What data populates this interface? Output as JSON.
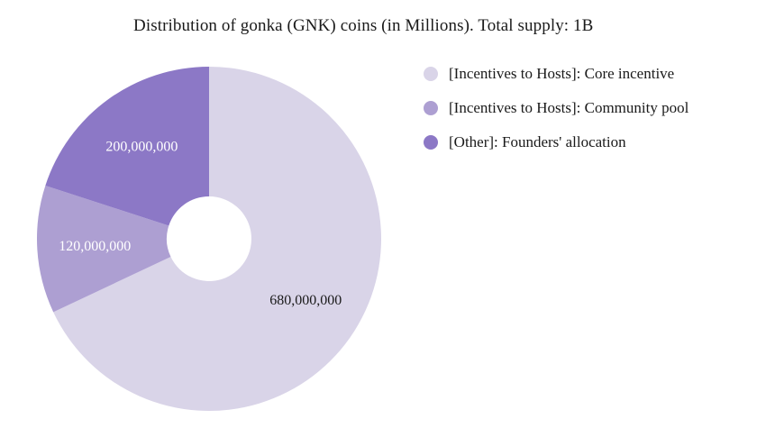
{
  "chart_data": {
    "type": "pie",
    "title": "Distribution of gonka (GNK) coins (in Millions). Total supply: 1B",
    "donut": true,
    "legend_position": "right",
    "slices": [
      {
        "name": "[Incentives to Hosts]: Core incentive",
        "value": 680000000,
        "label": "680,000,000",
        "color": "#d9d4e8",
        "label_color": "#1a1a1a"
      },
      {
        "name": "[Incentives to Hosts]: Community pool",
        "value": 120000000,
        "label": "120,000,000",
        "color": "#ad9fd2",
        "label_color": "#ffffff"
      },
      {
        "name": "[Other]: Founders' allocation",
        "value": 200000000,
        "label": "200,000,000",
        "color": "#8c78c6",
        "label_color": "#ffffff"
      }
    ]
  }
}
